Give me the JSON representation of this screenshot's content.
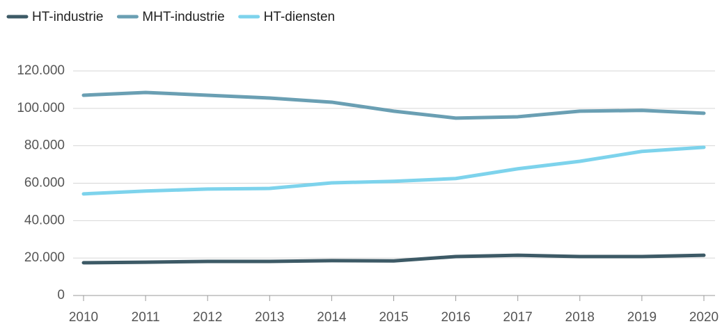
{
  "chart_data": {
    "type": "line",
    "x": [
      2010,
      2011,
      2012,
      2013,
      2014,
      2015,
      2016,
      2017,
      2018,
      2019,
      2020
    ],
    "xlim": [
      2010,
      2020
    ],
    "xticks": [
      2010,
      2011,
      2012,
      2013,
      2014,
      2015,
      2016,
      2017,
      2018,
      2019,
      2020
    ],
    "ylim": [
      0,
      120000
    ],
    "yticks": [
      0,
      {
        "value": 20000,
        "label": "20.000"
      },
      {
        "value": 40000,
        "label": "40.000"
      },
      {
        "value": 60000,
        "label": "60.000"
      },
      {
        "value": 80000,
        "label": "80.000"
      },
      {
        "value": 100000,
        "label": "100.000"
      },
      {
        "value": 120000,
        "label": "120.000"
      }
    ],
    "grid": true,
    "legend": "top-left",
    "series": [
      {
        "name": "HT-industrie",
        "color": "#3d5a66",
        "values": [
          17500,
          17800,
          18200,
          18200,
          18600,
          18500,
          20800,
          21500,
          20800,
          20800,
          21500
        ]
      },
      {
        "name": "MHT-industrie",
        "color": "#6a9fb3",
        "values": [
          107000,
          108500,
          107000,
          105500,
          103300,
          98500,
          94800,
          95500,
          98500,
          98900,
          97400
        ]
      },
      {
        "name": "HT-diensten",
        "color": "#7dd3ec",
        "values": [
          54300,
          55800,
          56900,
          57200,
          60200,
          61000,
          62500,
          67700,
          71700,
          77000,
          79200
        ]
      }
    ]
  }
}
